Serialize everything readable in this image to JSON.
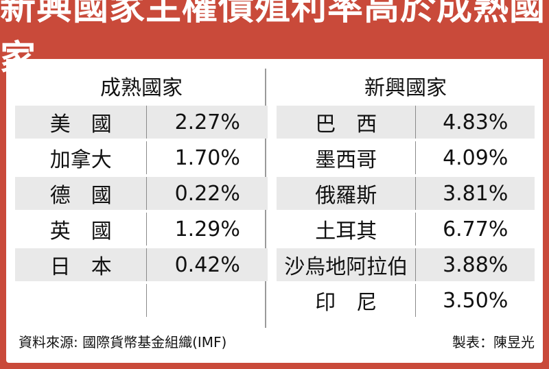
{
  "title": "新興國家主權債殖利率高於成熟國家",
  "developed": {
    "heading": "成熟國家",
    "rows": [
      {
        "name": "美　國",
        "value": "2.27%"
      },
      {
        "name": "加拿大",
        "value": "1.70%"
      },
      {
        "name": "德　國",
        "value": "0.22%"
      },
      {
        "name": "英　國",
        "value": "1.29%"
      },
      {
        "name": "日　本",
        "value": "0.42%"
      },
      {
        "name": "",
        "value": ""
      }
    ]
  },
  "emerging": {
    "heading": "新興國家",
    "rows": [
      {
        "name": "巴　西",
        "value": "4.83%"
      },
      {
        "name": "墨西哥",
        "value": "4.09%"
      },
      {
        "name": "俄羅斯",
        "value": "3.81%"
      },
      {
        "name": "土耳其",
        "value": "6.77%"
      },
      {
        "name": "沙烏地阿拉伯",
        "value": "3.88%"
      },
      {
        "name": "印　尼",
        "value": "3.50%"
      }
    ]
  },
  "footer": {
    "source": "資料來源: 國際貨幣基金組織(IMF)",
    "credit": "製表：陳昱光"
  },
  "colors": {
    "title_bg": "#c94a3a",
    "row_shade": "#e9e9e9"
  }
}
